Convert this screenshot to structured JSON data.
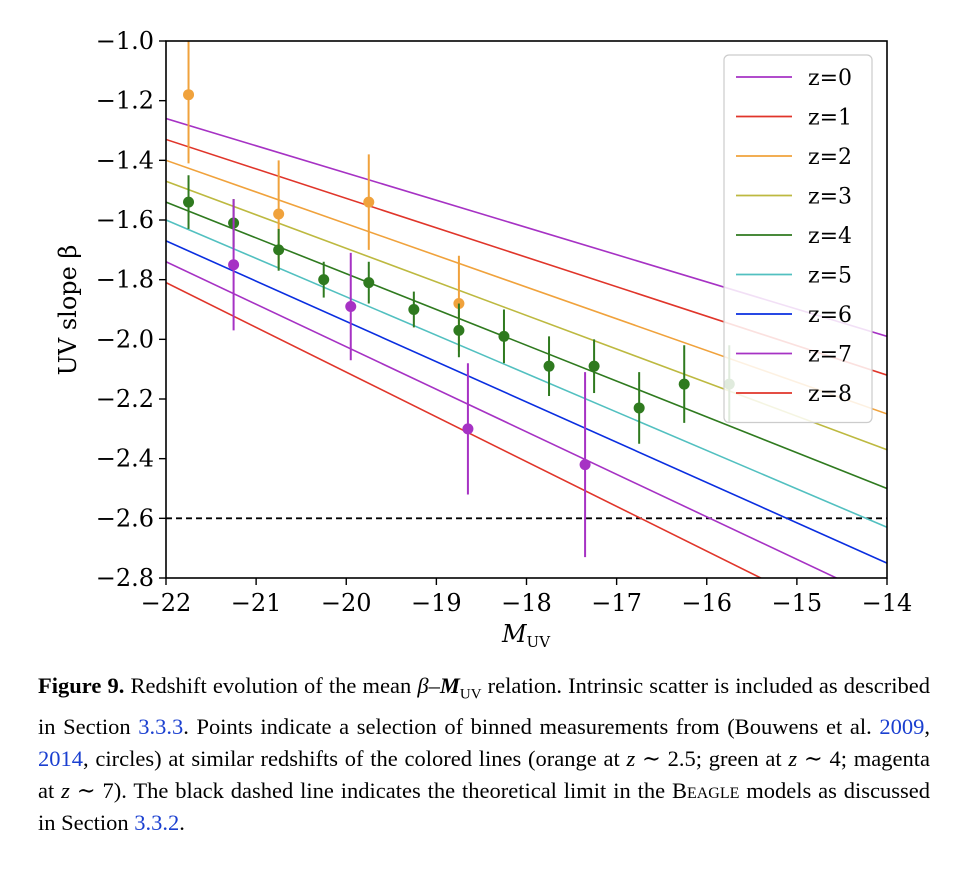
{
  "chart_data": {
    "type": "line",
    "xlabel": "M",
    "xlabel_sub": "UV",
    "ylabel": "UV slope β",
    "xlim": [
      -22,
      -14
    ],
    "ylim": [
      -2.8,
      -1.0
    ],
    "x_ticks": [
      -22,
      -21,
      -20,
      -19,
      -18,
      -17,
      -16,
      -15,
      -14
    ],
    "x_tick_labels": [
      "−22",
      "−21",
      "−20",
      "−19",
      "−18",
      "−17",
      "−16",
      "−15",
      "−14"
    ],
    "y_ticks": [
      -1.0,
      -1.2,
      -1.4,
      -1.6,
      -1.8,
      -2.0,
      -2.2,
      -2.4,
      -2.6,
      -2.8
    ],
    "y_tick_labels": [
      "−1.0",
      "−1.2",
      "−1.4",
      "−1.6",
      "−1.8",
      "−2.0",
      "−2.2",
      "−2.4",
      "−2.6",
      "−2.8"
    ],
    "legend_position": "top-right",
    "series": [
      {
        "name": "z=0",
        "color": "#a632c4",
        "x": [
          -22,
          -14
        ],
        "y": [
          -1.26,
          -1.99
        ]
      },
      {
        "name": "z=1",
        "color": "#e0352a",
        "x": [
          -22,
          -14
        ],
        "y": [
          -1.33,
          -2.12
        ]
      },
      {
        "name": "z=2",
        "color": "#f0a23c",
        "x": [
          -22,
          -14
        ],
        "y": [
          -1.4,
          -2.25
        ]
      },
      {
        "name": "z=3",
        "color": "#bdb940",
        "x": [
          -22,
          -14
        ],
        "y": [
          -1.47,
          -2.37
        ]
      },
      {
        "name": "z=4",
        "color": "#2f7a1f",
        "x": [
          -22,
          -14
        ],
        "y": [
          -1.54,
          -2.5
        ]
      },
      {
        "name": "z=5",
        "color": "#52c0c0",
        "x": [
          -22,
          -14
        ],
        "y": [
          -1.6,
          -2.63
        ]
      },
      {
        "name": "z=6",
        "color": "#0a2ee0",
        "x": [
          -22,
          -14
        ],
        "y": [
          -1.67,
          -2.75
        ]
      },
      {
        "name": "z=7",
        "color": "#a632c4",
        "x": [
          -22,
          -14
        ],
        "y": [
          -1.74,
          -2.88
        ]
      },
      {
        "name": "z=8",
        "color": "#e0352a",
        "x": [
          -22,
          -14
        ],
        "y": [
          -1.81,
          -3.01
        ]
      }
    ],
    "hlines": [
      {
        "y": -2.6,
        "color": "#000000",
        "style": "dashed"
      }
    ],
    "points": [
      {
        "color": "#f0a23c",
        "data": [
          {
            "x": -21.75,
            "y": -1.18,
            "lo": -1.41,
            "hi": -0.95
          },
          {
            "x": -20.75,
            "y": -1.58,
            "lo": -1.76,
            "hi": -1.4
          },
          {
            "x": -19.75,
            "y": -1.54,
            "lo": -1.7,
            "hi": -1.38
          },
          {
            "x": -18.75,
            "y": -1.88,
            "lo": -2.04,
            "hi": -1.72
          }
        ]
      },
      {
        "color": "#2f7a1f",
        "data": [
          {
            "x": -21.75,
            "y": -1.54,
            "lo": -1.63,
            "hi": -1.45
          },
          {
            "x": -21.25,
            "y": -1.61,
            "lo": -1.69,
            "hi": -1.53
          },
          {
            "x": -20.75,
            "y": -1.7,
            "lo": -1.77,
            "hi": -1.63
          },
          {
            "x": -20.25,
            "y": -1.8,
            "lo": -1.86,
            "hi": -1.74
          },
          {
            "x": -19.75,
            "y": -1.81,
            "lo": -1.88,
            "hi": -1.74
          },
          {
            "x": -19.25,
            "y": -1.9,
            "lo": -1.96,
            "hi": -1.84
          },
          {
            "x": -18.75,
            "y": -1.97,
            "lo": -2.06,
            "hi": -1.88
          },
          {
            "x": -18.25,
            "y": -1.99,
            "lo": -2.08,
            "hi": -1.9
          },
          {
            "x": -17.75,
            "y": -2.09,
            "lo": -2.19,
            "hi": -1.99
          },
          {
            "x": -17.25,
            "y": -2.09,
            "lo": -2.18,
            "hi": -2.0
          },
          {
            "x": -16.75,
            "y": -2.23,
            "lo": -2.35,
            "hi": -2.11
          },
          {
            "x": -16.25,
            "y": -2.15,
            "lo": -2.28,
            "hi": -2.02
          },
          {
            "x": -15.75,
            "y": -2.15,
            "lo": -2.28,
            "hi": -2.02
          }
        ]
      },
      {
        "color": "#a632c4",
        "data": [
          {
            "x": -21.25,
            "y": -1.75,
            "lo": -1.97,
            "hi": -1.53
          },
          {
            "x": -19.95,
            "y": -1.89,
            "lo": -2.07,
            "hi": -1.71
          },
          {
            "x": -18.65,
            "y": -2.3,
            "lo": -2.52,
            "hi": -2.08
          },
          {
            "x": -17.35,
            "y": -2.42,
            "lo": -2.73,
            "hi": -2.11
          }
        ]
      }
    ]
  },
  "caption": {
    "label": "Figure 9.",
    "text1": " Redshift evolution of the mean ",
    "beta": "β",
    "dash": "–",
    "m": "M",
    "m_sub": "UV",
    "text2": " relation. Intrinsic scatter is included as described in Section ",
    "ref1": "3.3.3",
    "text3": ". Points indicate a selection of binned measurements from (Bouwens et al. ",
    "ref2": "2009",
    "text4": ", ",
    "ref3": "2014",
    "text5": ", circles) at similar redshifts of the colored lines (orange at ",
    "z1": "z",
    "t6": " ∼ 2.5; green at ",
    "z2": "z",
    "t7": " ∼ 4; magenta at ",
    "z3": "z",
    "t8": " ∼ 7). The black dashed line indicates the theoretical limit in the ",
    "model": "Beagle",
    "t9": " models as discussed in Section ",
    "ref4": "3.3.2",
    "t10": "."
  }
}
